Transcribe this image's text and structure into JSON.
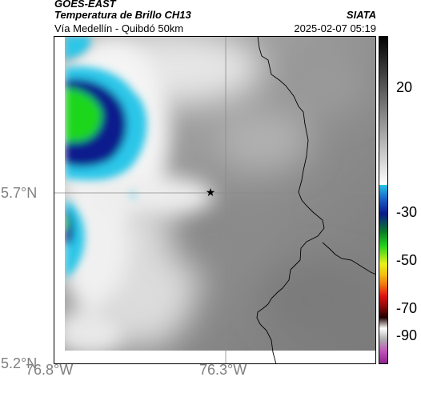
{
  "header": {
    "satellite": "GOES-EAST",
    "product": "Temperatura de Brillo CH13",
    "organization": "SIATA",
    "route": "Vía Medellín - Quibdó 50km",
    "timestamp": "2025-02-07 05:19"
  },
  "map": {
    "x_ticks": [
      "76.8°W",
      "76.3°W"
    ],
    "y_ticks": [
      "5.7°N",
      "5.2°N"
    ],
    "marker": "star",
    "colors": {
      "cold_cyan": "#29c6e8",
      "green": "#1fd61a",
      "dark_blue": "#0b1a8c",
      "background_gray": "#8c8c8c"
    }
  },
  "colorbar": {
    "labels": [
      "20",
      "-30",
      "-50",
      "-70",
      "-90"
    ]
  }
}
